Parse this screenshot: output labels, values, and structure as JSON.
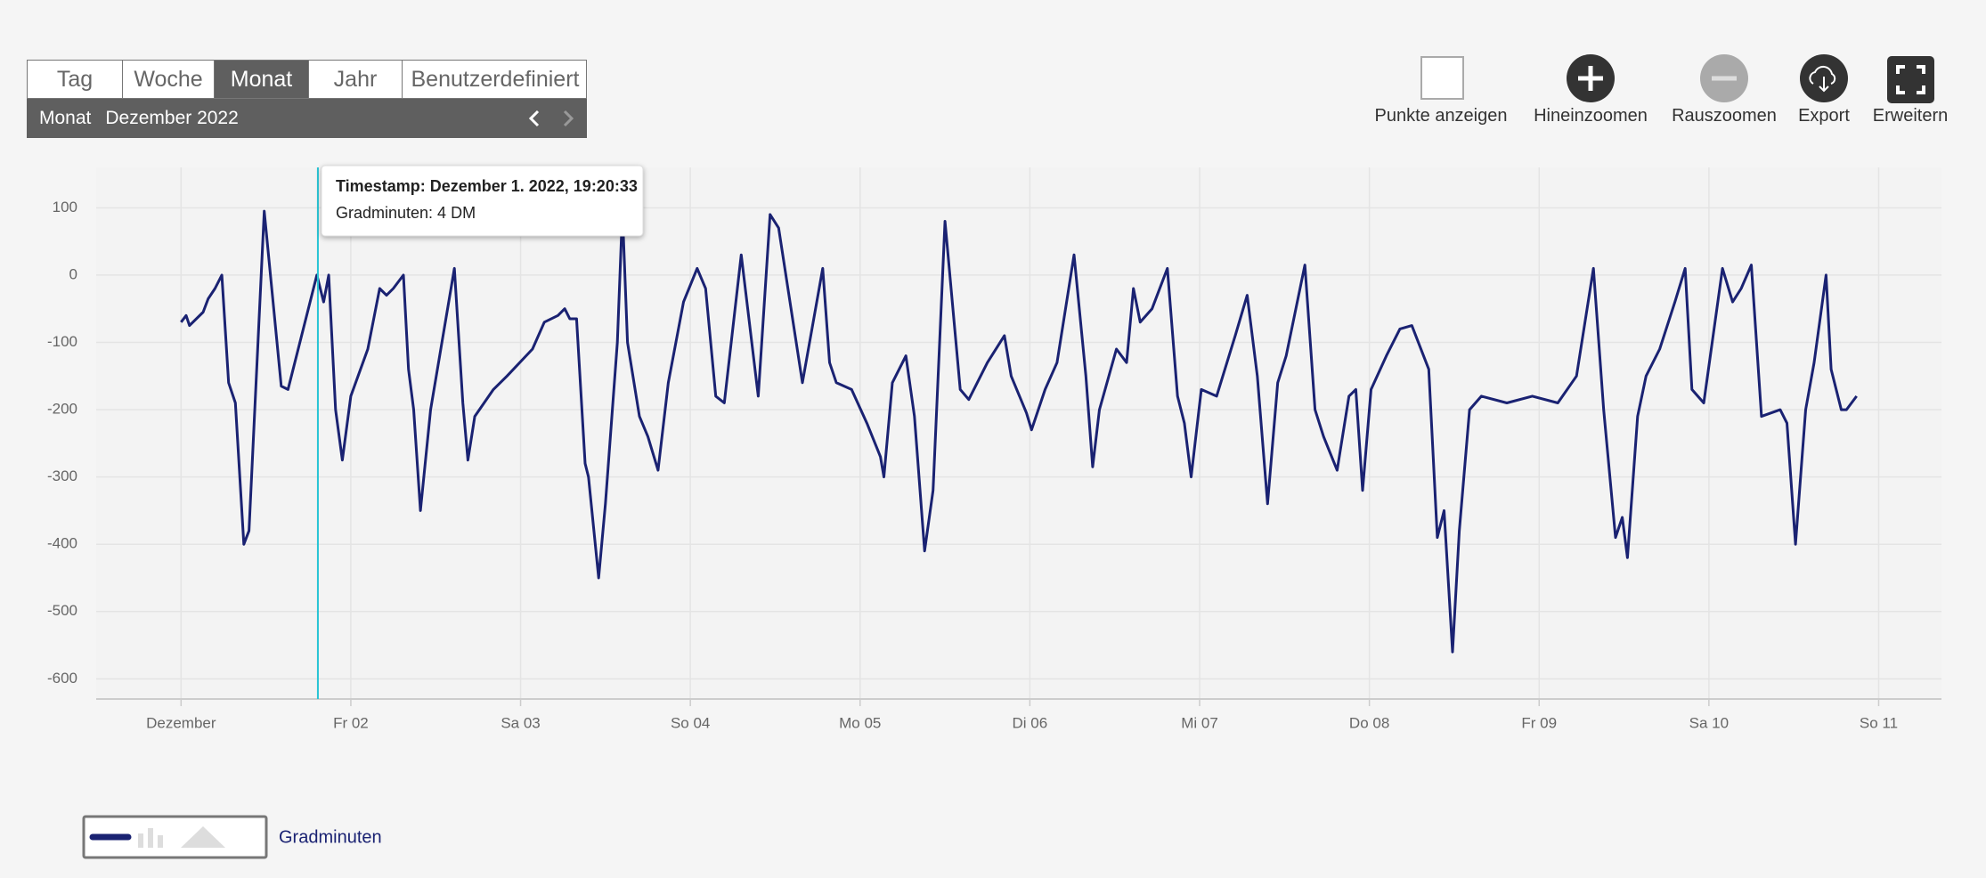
{
  "toolbar": {
    "tabs": [
      "Tag",
      "Woche",
      "Monat",
      "Jahr",
      "Benutzerdefiniert"
    ],
    "active_tab": 2,
    "period_label": "Monat",
    "period_value": "Dezember 2022"
  },
  "actions": [
    "Punkte anzeigen",
    "Hineinzoomen",
    "Rauszoomen",
    "Export",
    "Erweitern"
  ],
  "tooltip": {
    "timestamp": "Timestamp: Dezember 1. 2022, 19:20:33",
    "value": "Gradminuten: 4 DM"
  },
  "chart_data": {
    "type": "line",
    "grid": true,
    "xlim": [
      -0.5,
      10.37
    ],
    "ylim": [
      -630,
      160
    ],
    "xticks": [
      {
        "value": 0,
        "label": "Dezember"
      },
      {
        "value": 1,
        "label": "Fr 02"
      },
      {
        "value": 2,
        "label": "Sa 03"
      },
      {
        "value": 3,
        "label": "So 04"
      },
      {
        "value": 4,
        "label": "Mo 05"
      },
      {
        "value": 5,
        "label": "Di 06"
      },
      {
        "value": 6,
        "label": "Mi 07"
      },
      {
        "value": 7,
        "label": "Do 08"
      },
      {
        "value": 8,
        "label": "Fr 09"
      },
      {
        "value": 9,
        "label": "Sa 10"
      },
      {
        "value": 10,
        "label": "So 11"
      }
    ],
    "yticks": [
      -600,
      -500,
      -400,
      -300,
      -200,
      -100,
      0,
      100
    ],
    "cursor_x": 0.806,
    "x": [
      0,
      0.03,
      0.05,
      0.13,
      0.16,
      0.2,
      0.24,
      0.28,
      0.32,
      0.37,
      0.4,
      0.49,
      0.59,
      0.63,
      0.8,
      0.84,
      0.87,
      0.91,
      0.95,
      1.0,
      1.1,
      1.17,
      1.21,
      1.25,
      1.31,
      1.34,
      1.37,
      1.41,
      1.47,
      1.61,
      1.66,
      1.69,
      1.73,
      1.84,
      1.92,
      2.07,
      2.14,
      2.22,
      2.26,
      2.29,
      2.33,
      2.38,
      2.4,
      2.46,
      2.5,
      2.57,
      2.6,
      2.63,
      2.7,
      2.75,
      2.81,
      2.87,
      2.96,
      3.04,
      3.09,
      3.15,
      3.2,
      3.3,
      3.4,
      3.47,
      3.52,
      3.66,
      3.78,
      3.82,
      3.86,
      3.95,
      4.04,
      4.12,
      4.14,
      4.19,
      4.27,
      4.32,
      4.38,
      4.43,
      4.5,
      4.59,
      4.64,
      4.75,
      4.85,
      4.89,
      4.98,
      5.01,
      5.09,
      5.16,
      5.26,
      5.33,
      5.37,
      5.41,
      5.51,
      5.57,
      5.61,
      5.65,
      5.72,
      5.81,
      5.87,
      5.91,
      5.95,
      6.01,
      6.1,
      6.21,
      6.28,
      6.34,
      6.4,
      6.46,
      6.51,
      6.62,
      6.68,
      6.73,
      6.81,
      6.88,
      6.92,
      6.96,
      7.01,
      7.1,
      7.18,
      7.25,
      7.35,
      7.4,
      7.44,
      7.49,
      7.53,
      7.59,
      7.66,
      7.81,
      7.96,
      8.11,
      8.22,
      8.32,
      8.38,
      8.45,
      8.49,
      8.52,
      8.58,
      8.63,
      8.71,
      8.8,
      8.86,
      8.9,
      8.97,
      9.08,
      9.14,
      9.19,
      9.25,
      9.31,
      9.42,
      9.46,
      9.51,
      9.57,
      9.62,
      9.69,
      9.72,
      9.78,
      9.81,
      9.87
    ],
    "series": [
      {
        "name": "Gradminuten",
        "color": "#1a2272",
        "values": [
          -70,
          -60,
          -75,
          -55,
          -35,
          -20,
          0,
          -160,
          -190,
          -400,
          -380,
          95,
          -165,
          -170,
          0,
          -40,
          0,
          -200,
          -275,
          -180,
          -110,
          -20,
          -30,
          -20,
          0,
          -140,
          -200,
          -350,
          -200,
          10,
          -190,
          -275,
          -210,
          -170,
          -150,
          -110,
          -70,
          -60,
          -50,
          -65,
          -65,
          -280,
          -300,
          -450,
          -340,
          -100,
          95,
          -100,
          -210,
          -240,
          -290,
          -160,
          -40,
          10,
          -20,
          -180,
          -190,
          30,
          -180,
          90,
          70,
          -160,
          10,
          -130,
          -160,
          -170,
          -220,
          -270,
          -300,
          -160,
          -120,
          -210,
          -410,
          -320,
          80,
          -170,
          -185,
          -130,
          -90,
          -150,
          -205,
          -230,
          -170,
          -130,
          30,
          -150,
          -285,
          -200,
          -110,
          -130,
          -20,
          -70,
          -50,
          10,
          -180,
          -220,
          -300,
          -170,
          -180,
          -90,
          -30,
          -150,
          -340,
          -160,
          -120,
          15,
          -200,
          -240,
          -290,
          -180,
          -170,
          -320,
          -170,
          -120,
          -80,
          -75,
          -140,
          -390,
          -350,
          -560,
          -380,
          -200,
          -180,
          -190,
          -180,
          -190,
          -150,
          10,
          -200,
          -390,
          -360,
          -420,
          -210,
          -150,
          -110,
          -40,
          10,
          -170,
          -190,
          10,
          -40,
          -20,
          15,
          -210,
          -200,
          -220,
          -400,
          -200,
          -130,
          0,
          -140,
          -200,
          -200,
          -180
        ]
      }
    ]
  }
}
